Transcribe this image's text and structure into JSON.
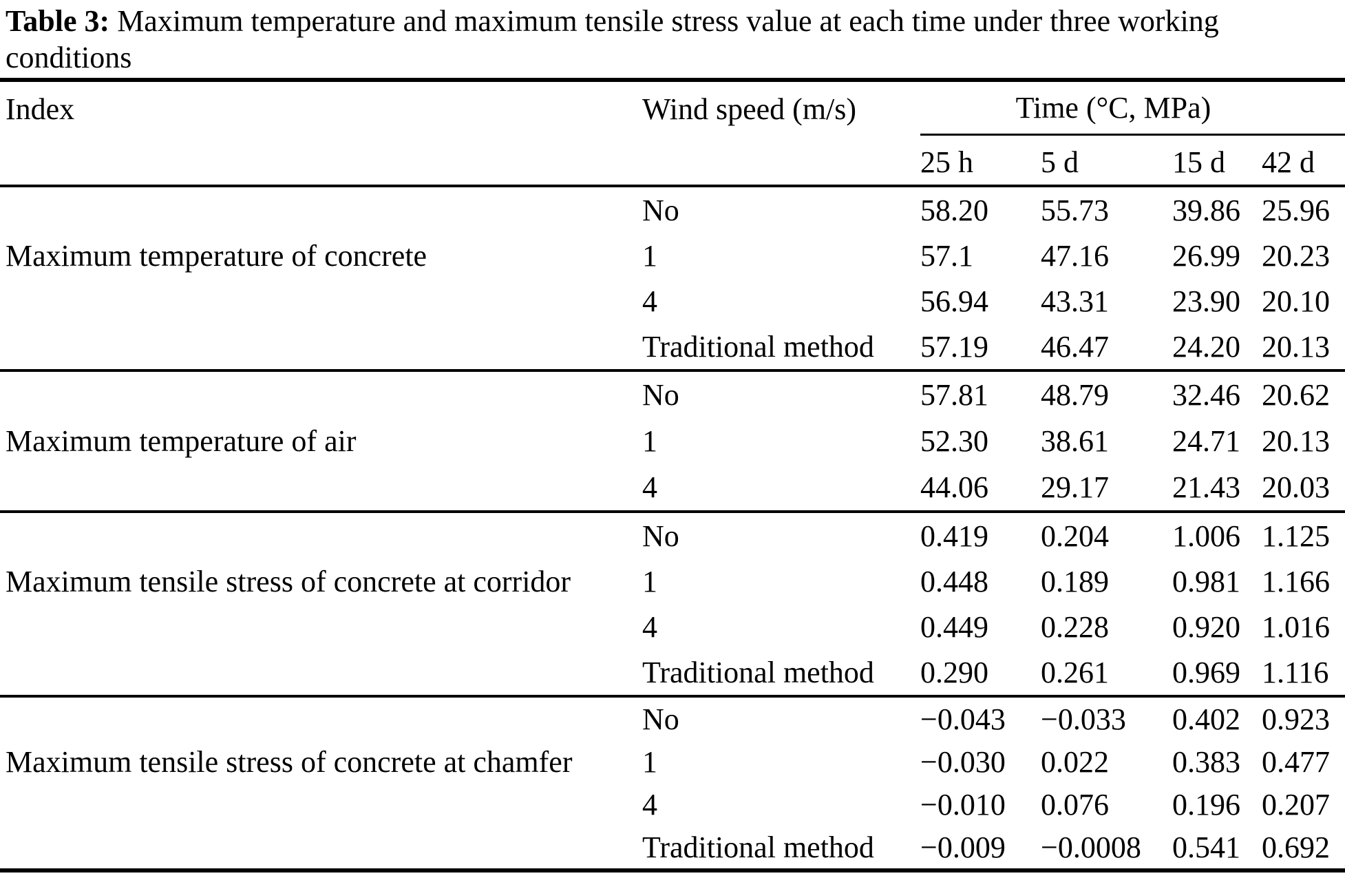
{
  "colors": {
    "text": "#000000",
    "background": "#ffffff",
    "rule": "#000000"
  },
  "caption": {
    "label": "Table 3:",
    "line1": "Maximum temperature and maximum tensile stress value at each time under three working",
    "line2": "conditions"
  },
  "table": {
    "header": {
      "index": "Index",
      "wind": "Wind speed (m/s)",
      "time_group": "Time (°C, MPa)",
      "time_cols": [
        "25 h",
        "5 d",
        "15 d",
        "42 d"
      ]
    },
    "groups": [
      {
        "index": "Maximum temperature of concrete",
        "rows": [
          {
            "wind": "No",
            "values": [
              "58.20",
              "55.73",
              "39.86",
              "25.96"
            ]
          },
          {
            "wind": "1",
            "values": [
              "57.1",
              "47.16",
              "26.99",
              "20.23"
            ]
          },
          {
            "wind": "4",
            "values": [
              "56.94",
              "43.31",
              "23.90",
              "20.10"
            ]
          },
          {
            "wind": "Traditional method",
            "values": [
              "57.19",
              "46.47",
              "24.20",
              "20.13"
            ]
          }
        ]
      },
      {
        "index": "Maximum temperature of air",
        "rows": [
          {
            "wind": "No",
            "values": [
              "57.81",
              "48.79",
              "32.46",
              "20.62"
            ]
          },
          {
            "wind": "1",
            "values": [
              "52.30",
              "38.61",
              "24.71",
              "20.13"
            ]
          },
          {
            "wind": "4",
            "values": [
              "44.06",
              "29.17",
              "21.43",
              "20.03"
            ]
          }
        ]
      },
      {
        "index": "Maximum tensile stress of concrete at corridor",
        "rows": [
          {
            "wind": "No",
            "values": [
              "0.419",
              "0.204",
              "1.006",
              "1.125"
            ]
          },
          {
            "wind": "1",
            "values": [
              "0.448",
              "0.189",
              "0.981",
              "1.166"
            ]
          },
          {
            "wind": "4",
            "values": [
              "0.449",
              "0.228",
              "0.920",
              "1.016"
            ]
          },
          {
            "wind": "Traditional method",
            "values": [
              "0.290",
              "0.261",
              "0.969",
              "1.116"
            ]
          }
        ]
      },
      {
        "index": "Maximum tensile stress of concrete at chamfer",
        "rows": [
          {
            "wind": "No",
            "values": [
              "−0.043",
              "−0.033",
              "0.402",
              "0.923"
            ]
          },
          {
            "wind": "1",
            "values": [
              "−0.030",
              "0.022",
              "0.383",
              "0.477"
            ]
          },
          {
            "wind": "4",
            "values": [
              "−0.010",
              "0.076",
              "0.196",
              "0.207"
            ]
          },
          {
            "wind": "Traditional method",
            "values": [
              "−0.009",
              "−0.0008",
              "0.541",
              "0.692"
            ]
          }
        ]
      }
    ]
  }
}
